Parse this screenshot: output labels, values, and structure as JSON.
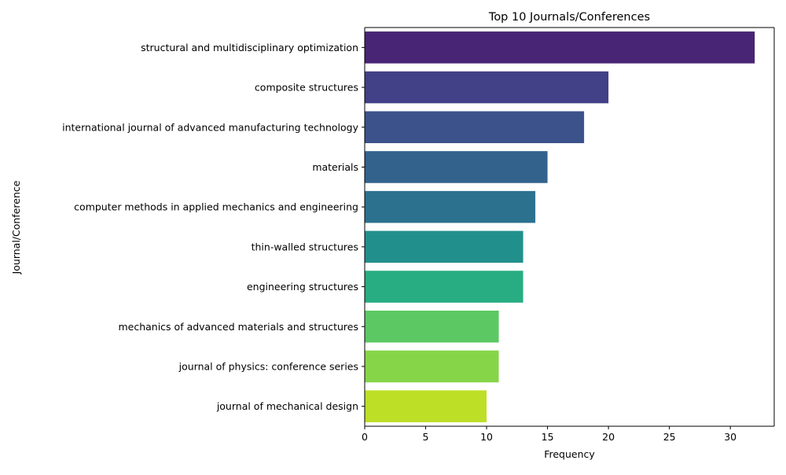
{
  "chart_data": {
    "type": "bar",
    "orientation": "horizontal",
    "title": "Top 10 Journals/Conferences",
    "xlabel": "Frequency",
    "ylabel": "Journal/Conference",
    "xlim": [
      0,
      33.6
    ],
    "xticks": [
      0,
      5,
      10,
      15,
      20,
      25,
      30
    ],
    "grid": false,
    "categories": [
      "structural and multidisciplinary optimization",
      "composite structures",
      "international journal of advanced manufacturing technology",
      "materials",
      "computer methods in applied mechanics and engineering",
      "thin-walled structures",
      "engineering structures",
      "mechanics of advanced materials and structures",
      "journal of physics: conference series",
      "journal of mechanical design"
    ],
    "values": [
      32,
      20,
      18,
      15,
      14,
      13,
      13,
      11,
      11,
      10
    ],
    "colors": [
      "#482575",
      "#424086",
      "#3b528b",
      "#33638d",
      "#2c728e",
      "#21908d",
      "#27ad81",
      "#5cc863",
      "#86d549",
      "#bddf26"
    ]
  }
}
